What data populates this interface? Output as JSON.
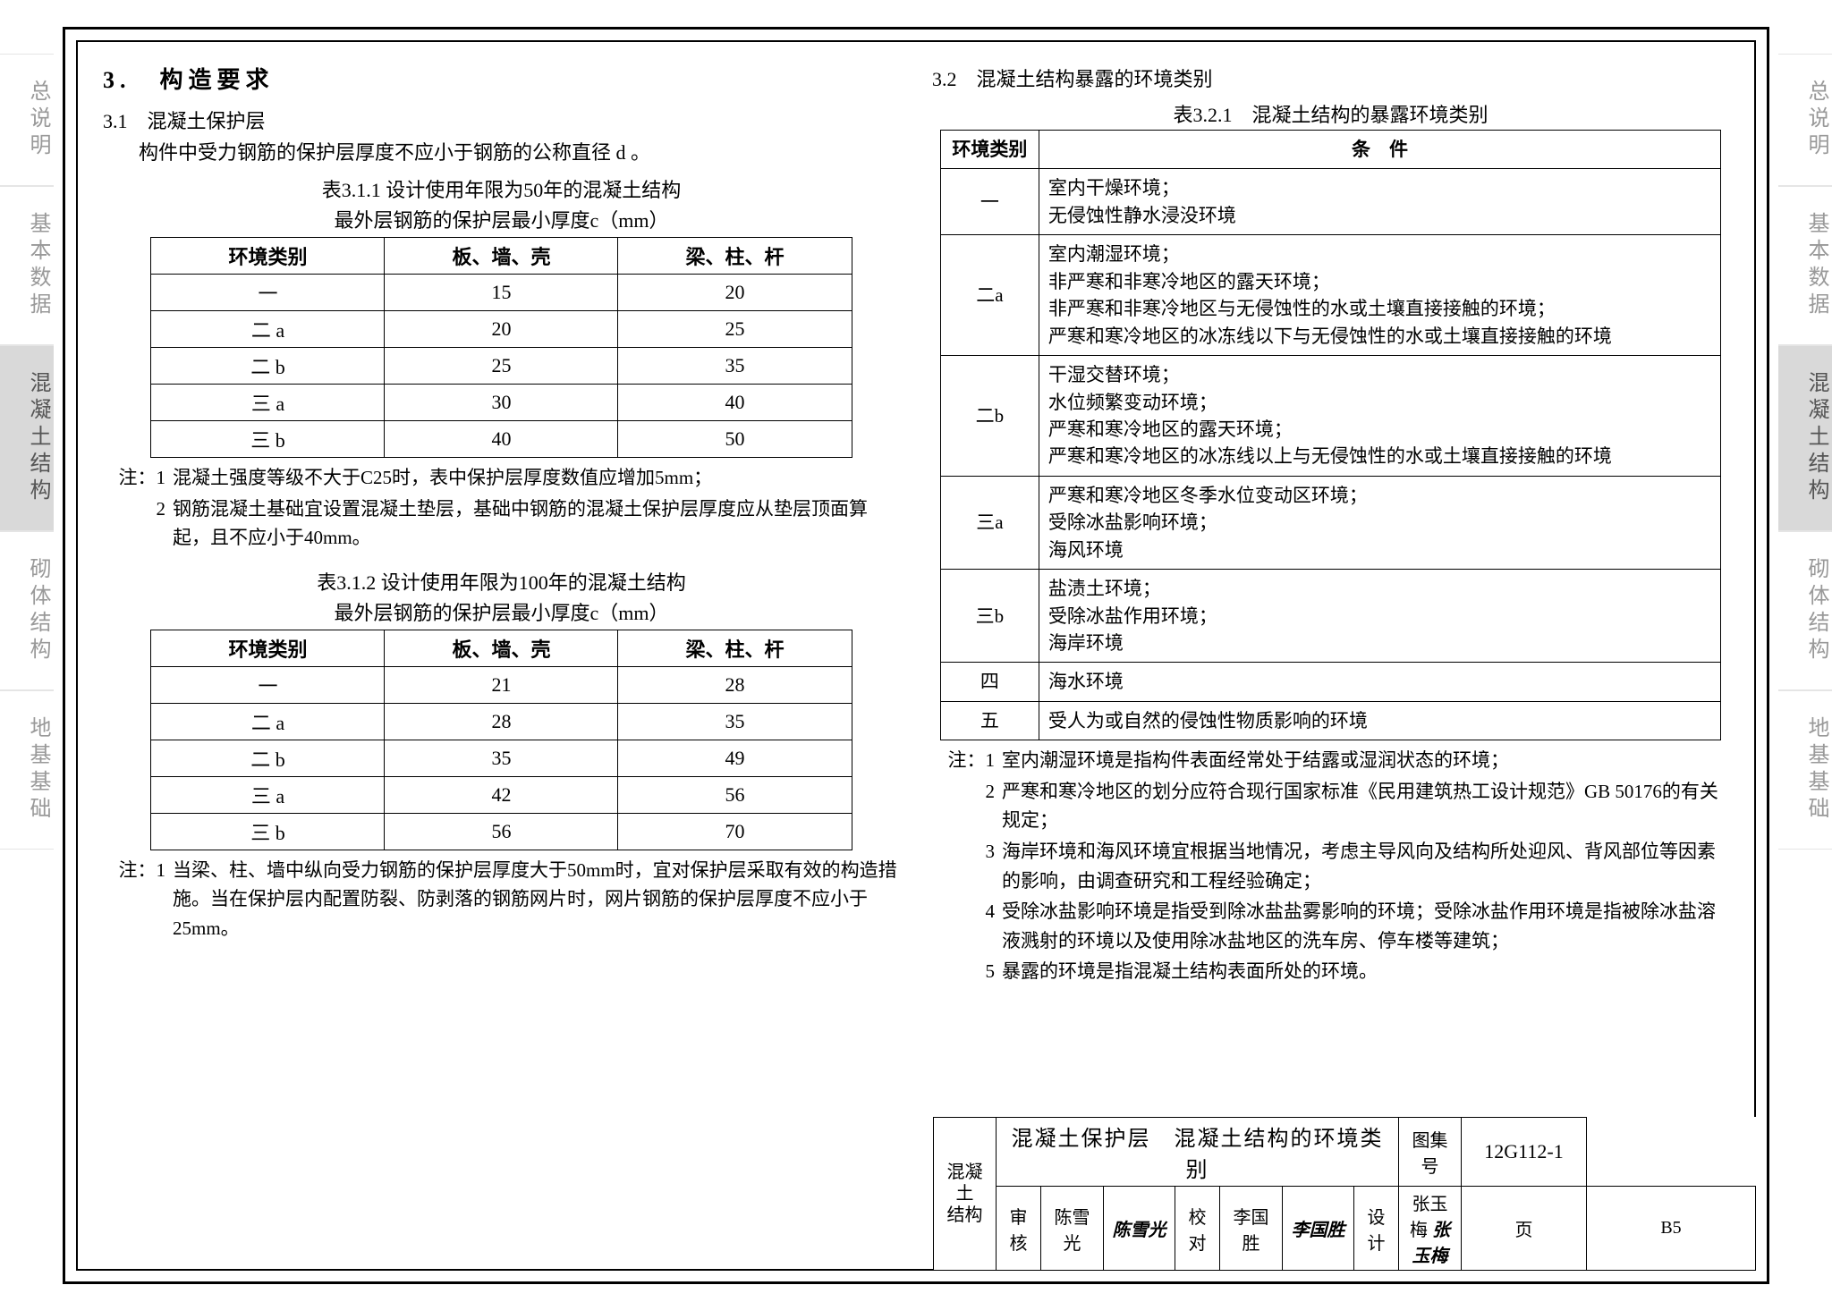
{
  "sideTabs": [
    "总说明",
    "基本数据",
    "混凝土结构",
    "砌体结构",
    "地基基础"
  ],
  "activeTabIndex": 2,
  "sec3_title": "3.　构造要求",
  "sec31_title": "3.1　混凝土保护层",
  "sec31_intro": "构件中受力钢筋的保护层厚度不应小于钢筋的公称直径 d 。",
  "tbl311_cap": "表3.1.1  设计使用年限为50年的混凝土结构",
  "tbl_sub": "最外层钢筋的保护层最小厚度c（mm）",
  "tbl_cols": [
    "环境类别",
    "板、墙、壳",
    "梁、柱、杆"
  ],
  "tbl311_rows": [
    [
      "一",
      "15",
      "20"
    ],
    [
      "二 a",
      "20",
      "25"
    ],
    [
      "二 b",
      "25",
      "35"
    ],
    [
      "三 a",
      "30",
      "40"
    ],
    [
      "三 b",
      "40",
      "50"
    ]
  ],
  "notes311": [
    "混凝土强度等级不大于C25时，表中保护层厚度数值应增加5mm；",
    "钢筋混凝土基础宜设置混凝土垫层，基础中钢筋的混凝土保护层厚度应从垫层顶面算起，且不应小于40mm。"
  ],
  "tbl312_cap": "表3.1.2  设计使用年限为100年的混凝土结构",
  "tbl312_rows": [
    [
      "一",
      "21",
      "28"
    ],
    [
      "二 a",
      "28",
      "35"
    ],
    [
      "二 b",
      "35",
      "49"
    ],
    [
      "三 a",
      "42",
      "56"
    ],
    [
      "三 b",
      "56",
      "70"
    ]
  ],
  "notes312": [
    "当梁、柱、墙中纵向受力钢筋的保护层厚度大于50mm时，宜对保护层采取有效的构造措施。当在保护层内配置防裂、防剥落的钢筋网片时，网片钢筋的保护层厚度不应小于25mm。"
  ],
  "sec32_title": "3.2　混凝土结构暴露的环境类别",
  "tbl321_cap": "表3.2.1　混凝土结构的暴露环境类别",
  "env_cols": [
    "环境类别",
    "条　件"
  ],
  "env_rows": [
    {
      "cat": "一",
      "cond": "室内干燥环境；\n无侵蚀性静水浸没环境"
    },
    {
      "cat": "二a",
      "cond": "室内潮湿环境；\n非严寒和非寒冷地区的露天环境；\n非严寒和非寒冷地区与无侵蚀性的水或土壤直接接触的环境；\n严寒和寒冷地区的冰冻线以下与无侵蚀性的水或土壤直接接触的环境"
    },
    {
      "cat": "二b",
      "cond": "干湿交替环境；\n水位频繁变动环境；\n严寒和寒冷地区的露天环境；\n严寒和寒冷地区的冰冻线以上与无侵蚀性的水或土壤直接接触的环境"
    },
    {
      "cat": "三a",
      "cond": "严寒和寒冷地区冬季水位变动区环境；\n受除冰盐影响环境；\n海风环境"
    },
    {
      "cat": "三b",
      "cond": "盐渍土环境；\n受除冰盐作用环境；\n海岸环境"
    },
    {
      "cat": "四",
      "cond": "海水环境"
    },
    {
      "cat": "五",
      "cond": "受人为或自然的侵蚀性物质影响的环境"
    }
  ],
  "notes321": [
    "室内潮湿环境是指构件表面经常处于结露或湿润状态的环境；",
    "严寒和寒冷地区的划分应符合现行国家标准《民用建筑热工设计规范》GB 50176的有关规定；",
    "海岸环境和海风环境宜根据当地情况，考虑主导风向及结构所处迎风、背风部位等因素的影响，由调查研究和工程经验确定；",
    "受除冰盐影响环境是指受到除冰盐盐雾影响的环境；受除冰盐作用环境是指被除冰盐溶液溅射的环境以及使用除冰盐地区的洗车房、停车楼等建筑；",
    "暴露的环境是指混凝土结构表面所处的环境。"
  ],
  "titleBlock": {
    "side": "混凝土\n结构",
    "main": "混凝土保护层　混凝土结构的环境类别",
    "atlasLabel": "图集号",
    "atlasNo": "12G112-1",
    "review": "审核",
    "reviewName": "陈雪光",
    "check": "校对",
    "checkName": "李国胜",
    "design": "设计",
    "designName": "张玉梅",
    "pageLabel": "页",
    "pageNo": "B5"
  }
}
